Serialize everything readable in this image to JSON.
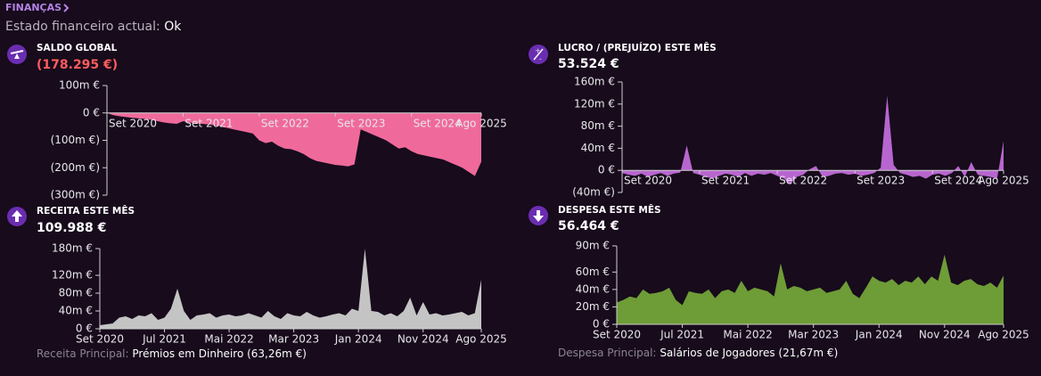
{
  "header": {
    "title": "FINANÇAS",
    "status_label": "Estado financeiro actual:",
    "status_value": "Ok"
  },
  "panels": [
    {
      "title": "SALDO GLOBAL",
      "value": "(178.295 €)",
      "chart_data": {
        "type": "area",
        "color": "#ef6a9b",
        "categories": [
          "Set 2020",
          null,
          null,
          null,
          null,
          null,
          null,
          null,
          null,
          null,
          null,
          null,
          "Set 2021",
          null,
          null,
          null,
          null,
          null,
          null,
          null,
          null,
          null,
          null,
          null,
          "Set 2022",
          null,
          null,
          null,
          null,
          null,
          null,
          null,
          null,
          null,
          null,
          null,
          "Set 2023",
          null,
          null,
          null,
          null,
          null,
          null,
          null,
          null,
          null,
          null,
          null,
          "Set 2024",
          null,
          null,
          null,
          null,
          null,
          null,
          null,
          null,
          null,
          null,
          "Ago 2025"
        ],
        "values": [
          0,
          -8,
          -12,
          -15,
          -18,
          -20,
          -22,
          -25,
          -30,
          -35,
          -38,
          -40,
          -30,
          -35,
          -38,
          -40,
          -42,
          -45,
          -50,
          -55,
          -60,
          -65,
          -70,
          -75,
          -100,
          -110,
          -105,
          -120,
          -130,
          -132,
          -140,
          -150,
          -165,
          -175,
          -180,
          -185,
          -190,
          -192,
          -195,
          -188,
          -60,
          -70,
          -80,
          -90,
          -100,
          -115,
          -130,
          -125,
          -140,
          -150,
          -155,
          -160,
          -165,
          -170,
          -180,
          -190,
          -200,
          -215,
          -230,
          -178
        ],
        "ylim": [
          -300,
          100
        ],
        "yticks": [
          {
            "value": 100,
            "label": "100m €"
          },
          {
            "value": 0,
            "label": "0 €"
          },
          {
            "value": -100,
            "label": "(100m €)"
          },
          {
            "value": -200,
            "label": "(200m €)"
          },
          {
            "value": -300,
            "label": "(300m €)"
          }
        ]
      }
    },
    {
      "title": "LUCRO / (PREJUÍZO) ESTE MÊS",
      "value": "53.524 €",
      "chart_data": {
        "type": "area",
        "color": "#b866cf",
        "categories": [
          "Set 2020",
          null,
          null,
          null,
          null,
          null,
          null,
          null,
          null,
          null,
          null,
          null,
          "Set 2021",
          null,
          null,
          null,
          null,
          null,
          null,
          null,
          null,
          null,
          null,
          null,
          "Set 2022",
          null,
          null,
          null,
          null,
          null,
          null,
          null,
          null,
          null,
          null,
          null,
          "Set 2023",
          null,
          null,
          null,
          null,
          null,
          null,
          null,
          null,
          null,
          null,
          null,
          "Set 2024",
          null,
          null,
          null,
          null,
          null,
          null,
          null,
          null,
          null,
          null,
          "Ago 2025"
        ],
        "values": [
          -5,
          -8,
          -10,
          -6,
          -12,
          -8,
          -5,
          -10,
          -6,
          -4,
          45,
          -5,
          -8,
          -12,
          -15,
          -10,
          -6,
          -8,
          -12,
          -5,
          -10,
          -6,
          -8,
          -5,
          -10,
          -15,
          -25,
          -12,
          -8,
          2,
          8,
          -12,
          -10,
          -6,
          -5,
          -8,
          -6,
          -10,
          -8,
          -5,
          5,
          135,
          10,
          -5,
          -8,
          -12,
          -10,
          -15,
          -8,
          -6,
          -10,
          -5,
          8,
          -12,
          15,
          -8,
          -10,
          -12,
          -15,
          53.5
        ],
        "ylim": [
          -40,
          160
        ],
        "yticks": [
          {
            "value": 160,
            "label": "160m €"
          },
          {
            "value": 120,
            "label": "120m €"
          },
          {
            "value": 80,
            "label": "80m €"
          },
          {
            "value": 40,
            "label": "40m €"
          },
          {
            "value": 0,
            "label": "0 €"
          },
          {
            "value": -40,
            "label": "(40m €)"
          }
        ]
      }
    },
    {
      "title": "RECEITA ESTE MÊS",
      "value": "109.988 €",
      "chart_data": {
        "type": "area",
        "color": "#c4c4c4",
        "categories": [
          "Set 2020",
          null,
          null,
          null,
          null,
          null,
          null,
          null,
          null,
          null,
          "Jul 2021",
          null,
          null,
          null,
          null,
          null,
          null,
          null,
          null,
          null,
          "Mai 2022",
          null,
          null,
          null,
          null,
          null,
          null,
          null,
          null,
          null,
          "Mar 2023",
          null,
          null,
          null,
          null,
          null,
          null,
          null,
          null,
          null,
          "Jan 2024",
          null,
          null,
          null,
          null,
          null,
          null,
          null,
          null,
          null,
          "Nov 2024",
          null,
          null,
          null,
          null,
          null,
          null,
          null,
          null,
          "Ago 2025"
        ],
        "values": [
          8,
          10,
          12,
          25,
          28,
          22,
          30,
          28,
          35,
          20,
          25,
          45,
          90,
          40,
          20,
          30,
          32,
          35,
          25,
          30,
          32,
          28,
          30,
          35,
          30,
          25,
          40,
          28,
          22,
          35,
          30,
          28,
          38,
          30,
          25,
          28,
          32,
          35,
          30,
          45,
          40,
          180,
          40,
          38,
          30,
          35,
          28,
          40,
          70,
          30,
          60,
          32,
          35,
          30,
          32,
          35,
          38,
          30,
          35,
          110
        ],
        "ylim": [
          0,
          180
        ],
        "yticks": [
          {
            "value": 180,
            "label": "180m €"
          },
          {
            "value": 120,
            "label": "120m €"
          },
          {
            "value": 80,
            "label": "80m €"
          },
          {
            "value": 40,
            "label": "40m €"
          },
          {
            "value": 0,
            "label": "0 €"
          }
        ]
      }
    },
    {
      "title": "DESPESA ESTE MÊS",
      "value": "56.464 €",
      "chart_data": {
        "type": "area",
        "color": "#6e9c36",
        "categories": [
          "Set 2020",
          null,
          null,
          null,
          null,
          null,
          null,
          null,
          null,
          null,
          "Jul 2021",
          null,
          null,
          null,
          null,
          null,
          null,
          null,
          null,
          null,
          "Mai 2022",
          null,
          null,
          null,
          null,
          null,
          null,
          null,
          null,
          null,
          "Mar 2023",
          null,
          null,
          null,
          null,
          null,
          null,
          null,
          null,
          null,
          "Jan 2024",
          null,
          null,
          null,
          null,
          null,
          null,
          null,
          null,
          null,
          "Nov 2024",
          null,
          null,
          null,
          null,
          null,
          null,
          null,
          null,
          "Ago 2025"
        ],
        "values": [
          25,
          28,
          32,
          30,
          40,
          35,
          36,
          38,
          42,
          28,
          22,
          38,
          36,
          35,
          40,
          30,
          38,
          40,
          36,
          50,
          38,
          42,
          40,
          38,
          32,
          70,
          40,
          44,
          42,
          38,
          40,
          42,
          36,
          38,
          40,
          50,
          35,
          30,
          42,
          55,
          50,
          48,
          52,
          45,
          50,
          48,
          55,
          46,
          55,
          50,
          80,
          48,
          45,
          50,
          52,
          46,
          44,
          48,
          42,
          56
        ],
        "ylim": [
          0,
          90
        ],
        "yticks": [
          {
            "value": 90,
            "label": "90m €"
          },
          {
            "value": 60,
            "label": "60m €"
          },
          {
            "value": 40,
            "label": "40m €"
          },
          {
            "value": 20,
            "label": "20m €"
          },
          {
            "value": 0,
            "label": "0 €"
          }
        ]
      }
    }
  ],
  "footnotes": [
    {
      "label": "Receita Principal:",
      "value": "Prémios em Dinheiro (63,26m €)"
    },
    {
      "label": "Despesa Principal:",
      "value": "Salários de Jogadores (21,67m €)"
    }
  ]
}
